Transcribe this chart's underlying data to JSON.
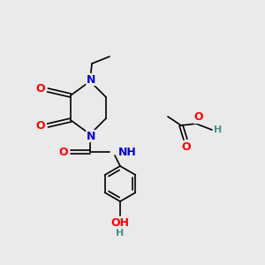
{
  "bg_color": "#eaeaea",
  "atom_colors": {
    "C": "#000000",
    "N": "#0000cc",
    "O": "#ff0000",
    "H": "#4a9090"
  },
  "bond_color": "#000000",
  "bond_width": 1.2,
  "figsize": [
    3.0,
    3.0
  ],
  "dpi": 100
}
